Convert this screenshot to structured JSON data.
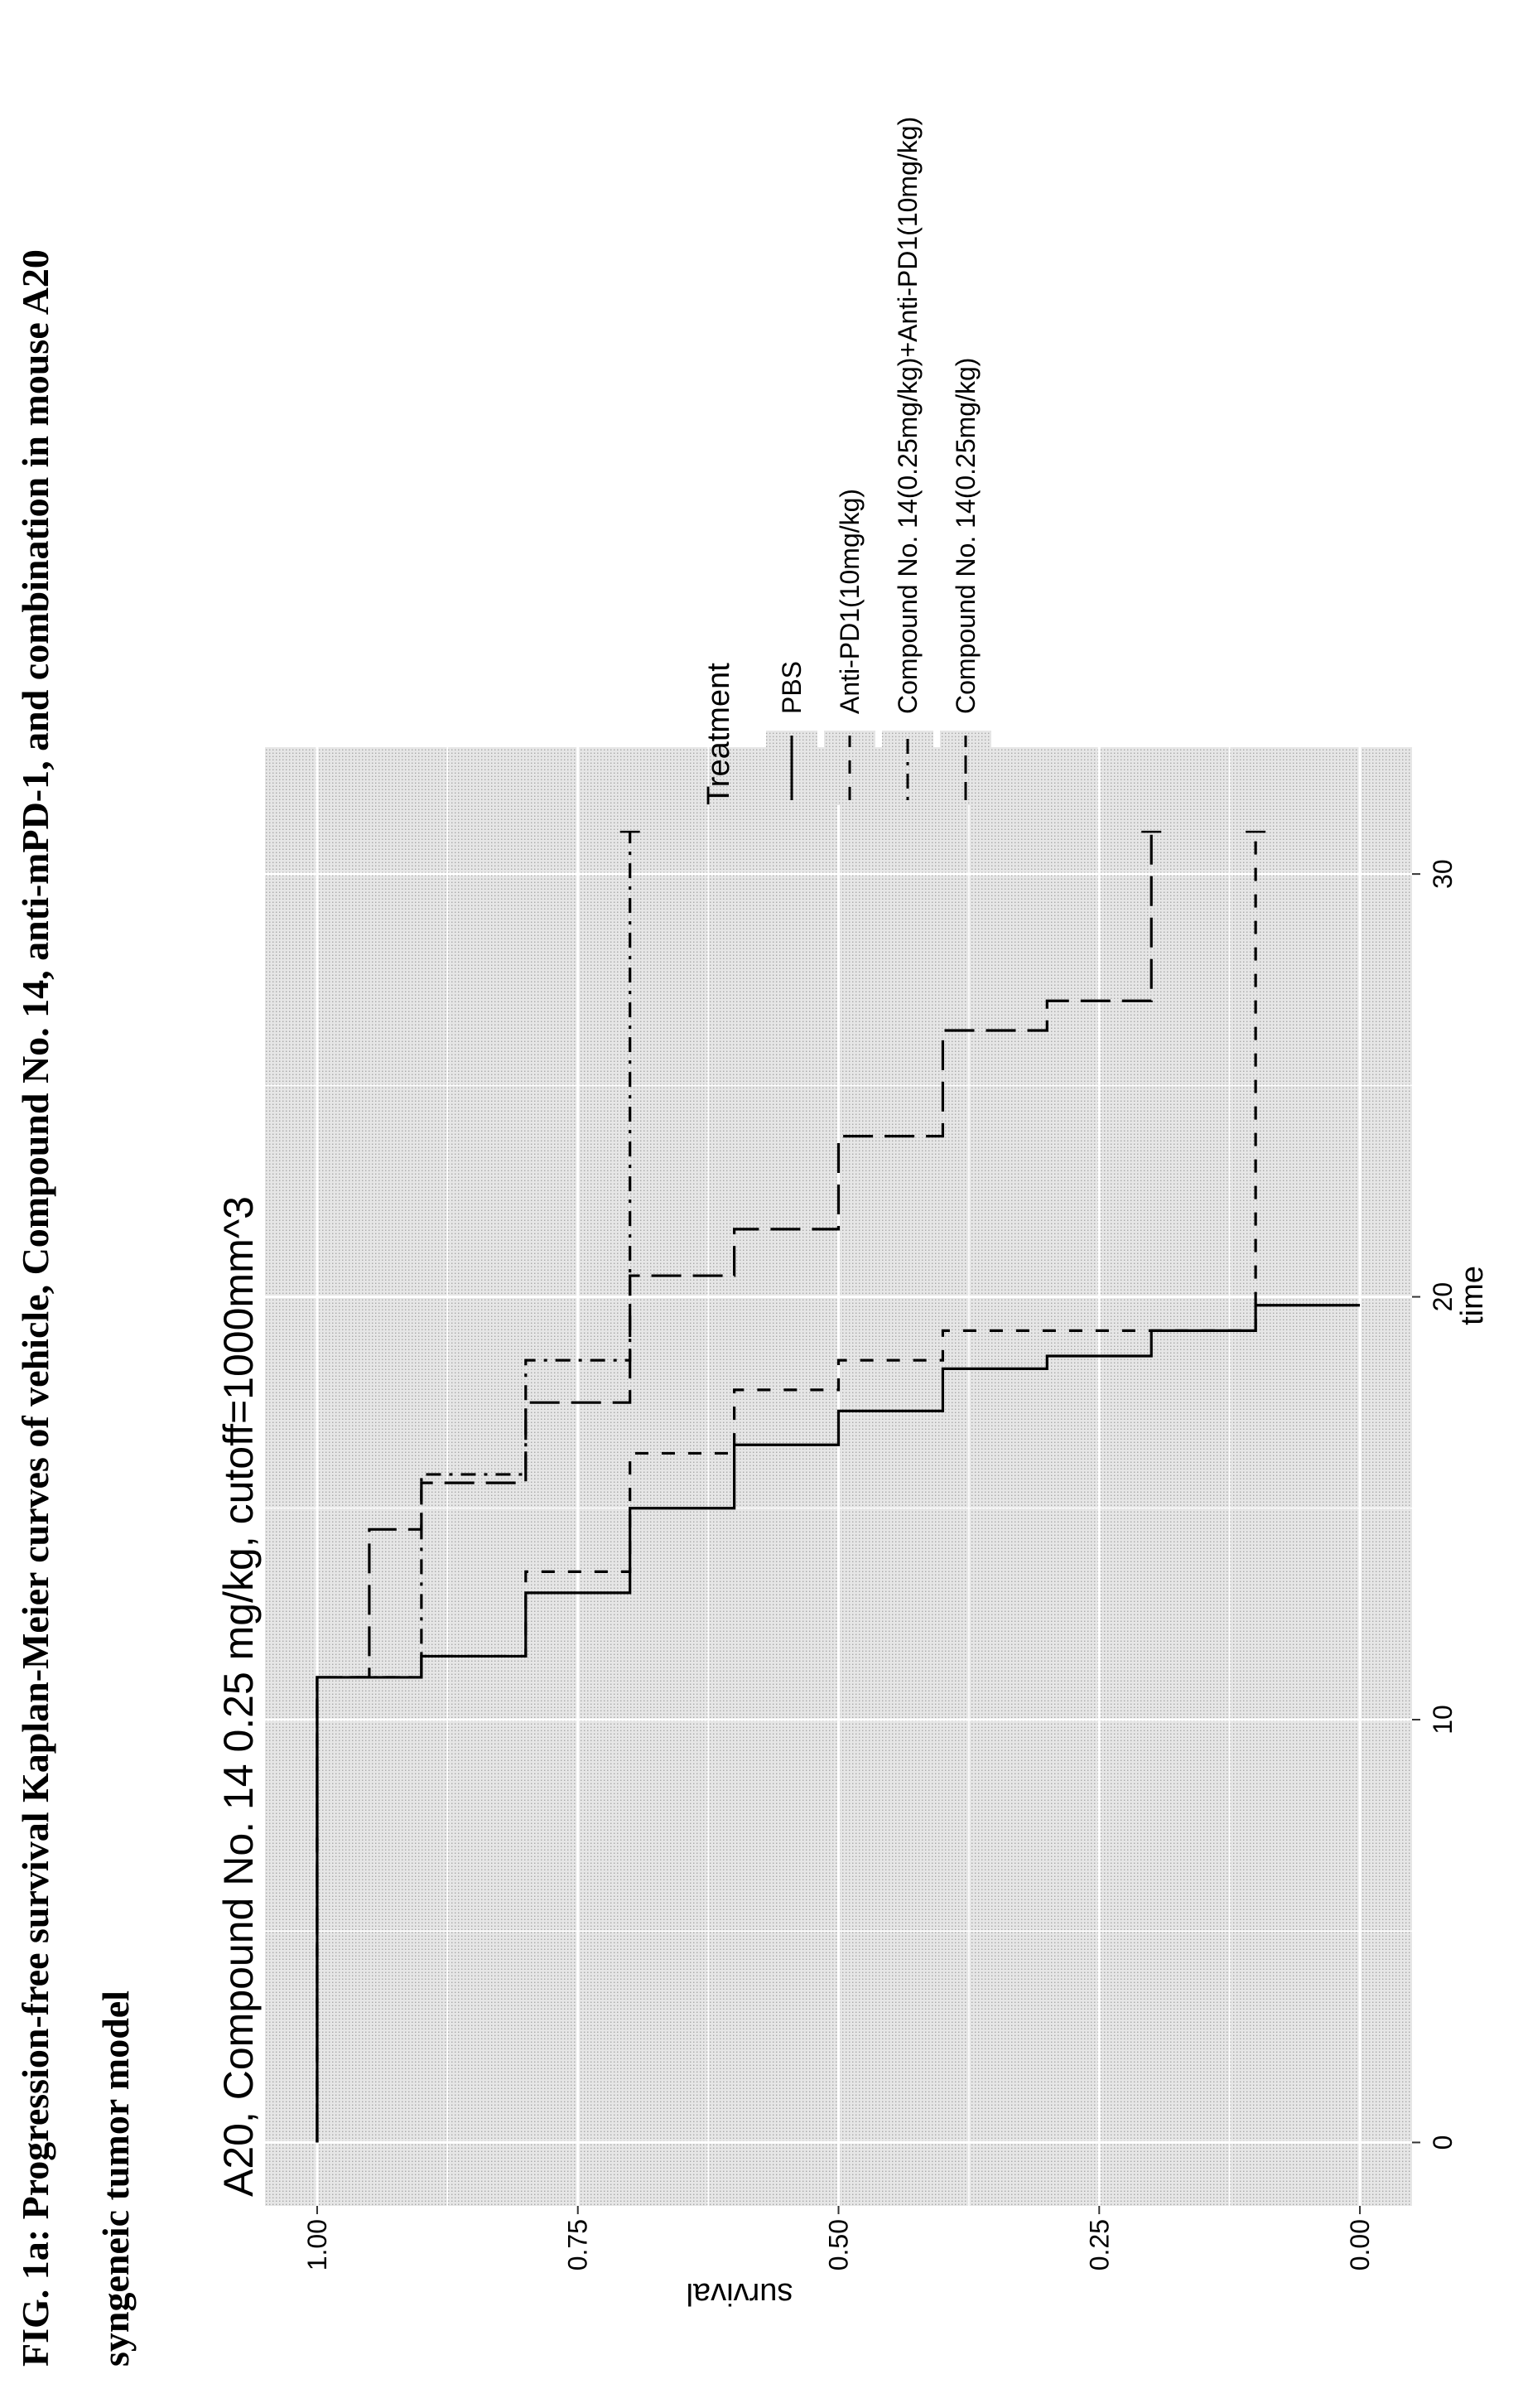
{
  "figure": {
    "caption_line1": "FIG. 1a: Progression-free survival Kaplan-Meier curves of vehicle, Compound No. 14, anti-mPD-1, and combination in mouse A20",
    "caption_line2": "syngeneic tumor model"
  },
  "chart_data": {
    "type": "line",
    "title": "A20, Compound No. 14 0.25 mg/kg, cutoff=1000mm^3",
    "xlabel": "time",
    "ylabel": "survival",
    "xlim": [
      -1.5,
      33
    ],
    "ylim": [
      -0.05,
      1.05
    ],
    "x_ticks": [
      0,
      10,
      20,
      30
    ],
    "x_tick_labels": [
      "0",
      "10",
      "20",
      "30"
    ],
    "y_ticks": [
      0,
      0.25,
      0.5,
      0.75,
      1
    ],
    "y_tick_labels": [
      "0.00",
      "0.25",
      "0.50",
      "0.75",
      "1.00"
    ],
    "grid": true,
    "legend_placement": "right",
    "legend_title": "Treatment",
    "series": [
      {
        "name": "PBS",
        "dash": "solid",
        "steps": [
          [
            0,
            1.0
          ],
          [
            11,
            0.9
          ],
          [
            11.5,
            0.8
          ],
          [
            13,
            0.7
          ],
          [
            15,
            0.6
          ],
          [
            16.5,
            0.5
          ],
          [
            17.3,
            0.4
          ],
          [
            18.3,
            0.3
          ],
          [
            18.6,
            0.2
          ],
          [
            19.2,
            0.1
          ],
          [
            19.8,
            0.0
          ]
        ],
        "end_x": 19.8,
        "censor_end": false
      },
      {
        "name": "Anti-PD1(10mg/kg)",
        "dash": "dashed",
        "steps": [
          [
            0,
            1.0
          ],
          [
            11,
            0.9
          ],
          [
            11.5,
            0.8
          ],
          [
            13.5,
            0.7
          ],
          [
            16.3,
            0.6
          ],
          [
            17.8,
            0.5
          ],
          [
            18.5,
            0.4
          ],
          [
            19.2,
            0.1
          ]
        ],
        "end_x": 31,
        "censor_end": true
      },
      {
        "name": "Compound No. 14(0.25mg/kg)+Anti-PD1(10mg/kg)",
        "dash": "dotdash",
        "steps": [
          [
            0,
            1.0
          ],
          [
            11,
            0.9
          ],
          [
            15.8,
            0.8
          ],
          [
            18.5,
            0.7
          ]
        ],
        "end_x": 31,
        "censor_end": true
      },
      {
        "name": "Compound No. 14(0.25mg/kg)",
        "dash": "longdash",
        "steps": [
          [
            0,
            1.0
          ],
          [
            11,
            0.95
          ],
          [
            14.5,
            0.9
          ],
          [
            15.6,
            0.8
          ],
          [
            17.5,
            0.7
          ],
          [
            20.5,
            0.6
          ],
          [
            21.6,
            0.5
          ],
          [
            23.8,
            0.4
          ],
          [
            26.3,
            0.3
          ],
          [
            27.0,
            0.2
          ]
        ],
        "end_x": 31,
        "censor_end": true
      }
    ]
  }
}
